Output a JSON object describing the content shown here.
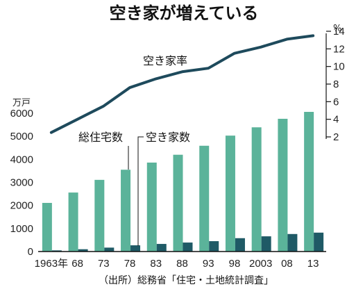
{
  "chart_data": {
    "type": "bar",
    "title": "空き家が増えている",
    "categories": [
      "1963年",
      "68",
      "73",
      "78",
      "83",
      "88",
      "93",
      "98",
      "2003",
      "08",
      "13"
    ],
    "series": [
      {
        "name": "総住宅数",
        "type": "bar",
        "axis": "left",
        "color": "#5bb39a",
        "values": [
          2110,
          2560,
          3110,
          3550,
          3860,
          4200,
          4590,
          5030,
          5390,
          5760,
          6060
        ]
      },
      {
        "name": "空き家数",
        "type": "bar",
        "axis": "left",
        "color": "#1f5a66",
        "values": [
          50,
          100,
          170,
          270,
          330,
          390,
          450,
          580,
          660,
          760,
          820
        ]
      },
      {
        "name": "空き家率",
        "type": "line",
        "axis": "right",
        "color": "#1e4a5c",
        "values": [
          2.5,
          4.0,
          5.5,
          7.6,
          8.6,
          9.4,
          9.8,
          11.5,
          12.2,
          13.1,
          13.5
        ]
      }
    ],
    "y_left": {
      "unit": "万戸",
      "min": 0,
      "max": 6000,
      "ticks": [
        "0",
        "1000",
        "2000",
        "3000",
        "4000",
        "5000",
        "6000"
      ]
    },
    "y_right": {
      "unit": "%",
      "min": 2,
      "max": 14,
      "ticks": [
        "2",
        "4",
        "6",
        "8",
        "10",
        "12",
        "14"
      ]
    },
    "grid": false,
    "source": "（出所）総務省「住宅・土地統計調査」"
  }
}
